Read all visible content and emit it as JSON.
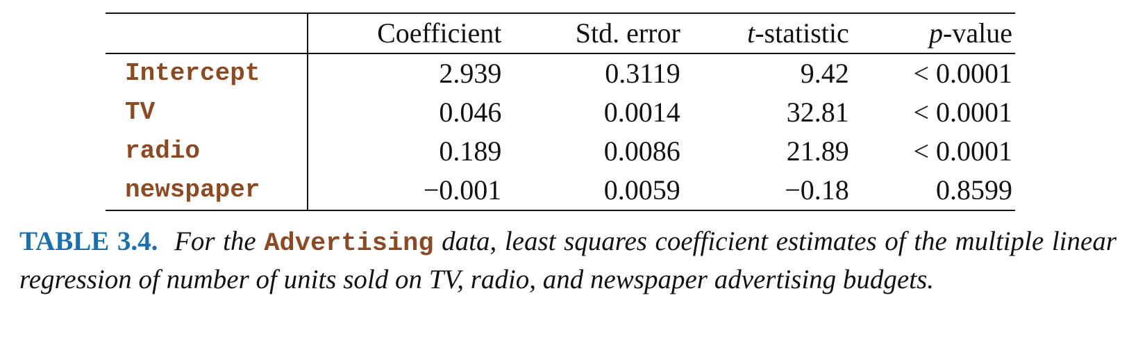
{
  "table": {
    "headers": {
      "coefficient": "Coefficient",
      "std_error": "Std. error",
      "t_stat_var": "t",
      "t_stat_rest": "-statistic",
      "p_value_var": "p",
      "p_value_rest": "-value"
    },
    "rows": [
      {
        "label": "Intercept",
        "coefficient": "2.939",
        "std_error": "0.3119",
        "t_statistic": "9.42",
        "p_value": "< 0.0001"
      },
      {
        "label": "TV",
        "coefficient": "0.046",
        "std_error": "0.0014",
        "t_statistic": "32.81",
        "p_value": "< 0.0001"
      },
      {
        "label": "radio",
        "coefficient": "0.189",
        "std_error": "0.0086",
        "t_statistic": "21.89",
        "p_value": "< 0.0001"
      },
      {
        "label": "newspaper",
        "coefficient": "−0.001",
        "std_error": "0.0059",
        "t_statistic": "−0.18",
        "p_value": "0.8599"
      }
    ]
  },
  "caption": {
    "label": "TABLE 3.4.",
    "text_before": "For the",
    "dataset": "Advertising",
    "text_after": "data, least squares coefficient estimates of the multiple linear regression of number of units sold on TV, radio, and newspaper advertising budgets."
  },
  "colors": {
    "label_brown": "#8b4a23",
    "caption_blue": "#1a6fae"
  }
}
